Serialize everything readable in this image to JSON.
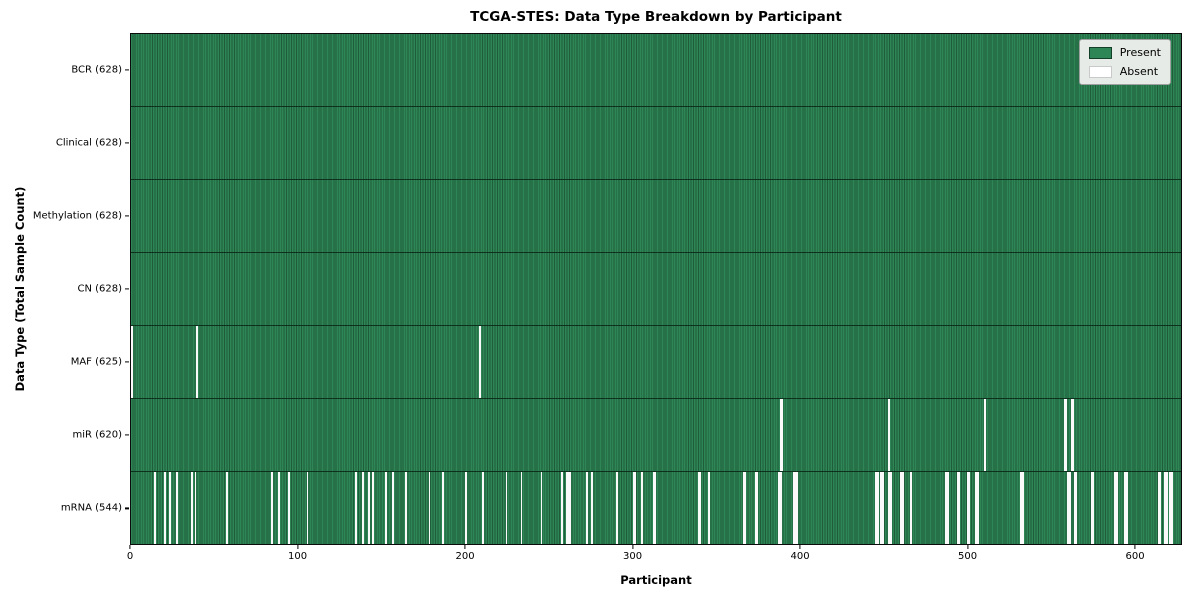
{
  "figure": {
    "title": "TCGA-STES: Data Type Breakdown by Participant",
    "xlabel": "Participant",
    "ylabel": "Data Type (Total Sample Count)"
  },
  "legend": {
    "present_label": "Present",
    "absent_label": "Absent",
    "present_color": "#2e8657",
    "absent_color": "#ffffff"
  },
  "chart_data": {
    "type": "heatmap",
    "title": "TCGA-STES: Data Type Breakdown by Participant",
    "xlabel": "Participant",
    "ylabel": "Data Type (Total Sample Count)",
    "legend_entries": [
      "Present",
      "Absent"
    ],
    "legend_position": "upper right",
    "grid": false,
    "n_participants": 628,
    "x_ticks": [
      0,
      100,
      200,
      300,
      400,
      500,
      600
    ],
    "x_range": [
      0,
      628
    ],
    "rows": [
      {
        "name": "BCR",
        "label": "BCR (628)",
        "present_count": 628,
        "absent_participants": []
      },
      {
        "name": "Clinical",
        "label": "Clinical (628)",
        "present_count": 628,
        "absent_participants": []
      },
      {
        "name": "Methylation",
        "label": "Methylation (628)",
        "present_count": 628,
        "absent_participants": []
      },
      {
        "name": "CN",
        "label": "CN (628)",
        "present_count": 628,
        "absent_participants": []
      },
      {
        "name": "MAF",
        "label": "MAF (625)",
        "present_count": 625,
        "absent_participants": [
          0,
          39,
          208
        ]
      },
      {
        "name": "miR",
        "label": "miR (620)",
        "present_count": 620,
        "absent_participants": [
          388,
          389,
          453,
          510,
          558,
          559,
          562,
          563
        ]
      },
      {
        "name": "mRNA",
        "label": "mRNA (544)",
        "present_count": 544,
        "absent_participants": [
          14,
          20,
          23,
          27,
          36,
          38,
          57,
          84,
          88,
          94,
          105,
          134,
          138,
          142,
          144,
          152,
          156,
          164,
          178,
          186,
          200,
          210,
          224,
          233,
          245,
          257,
          260,
          261,
          262,
          272,
          275,
          290,
          300,
          301,
          305,
          312,
          313,
          339,
          340,
          345,
          366,
          367,
          373,
          374,
          387,
          388,
          396,
          397,
          398,
          445,
          446,
          448,
          449,
          453,
          454,
          460,
          461,
          466,
          487,
          488,
          494,
          495,
          500,
          501,
          505,
          506,
          532,
          533,
          560,
          561,
          564,
          565,
          574,
          575,
          588,
          589,
          594,
          595,
          614,
          615,
          618,
          619,
          621,
          622
        ]
      }
    ]
  }
}
